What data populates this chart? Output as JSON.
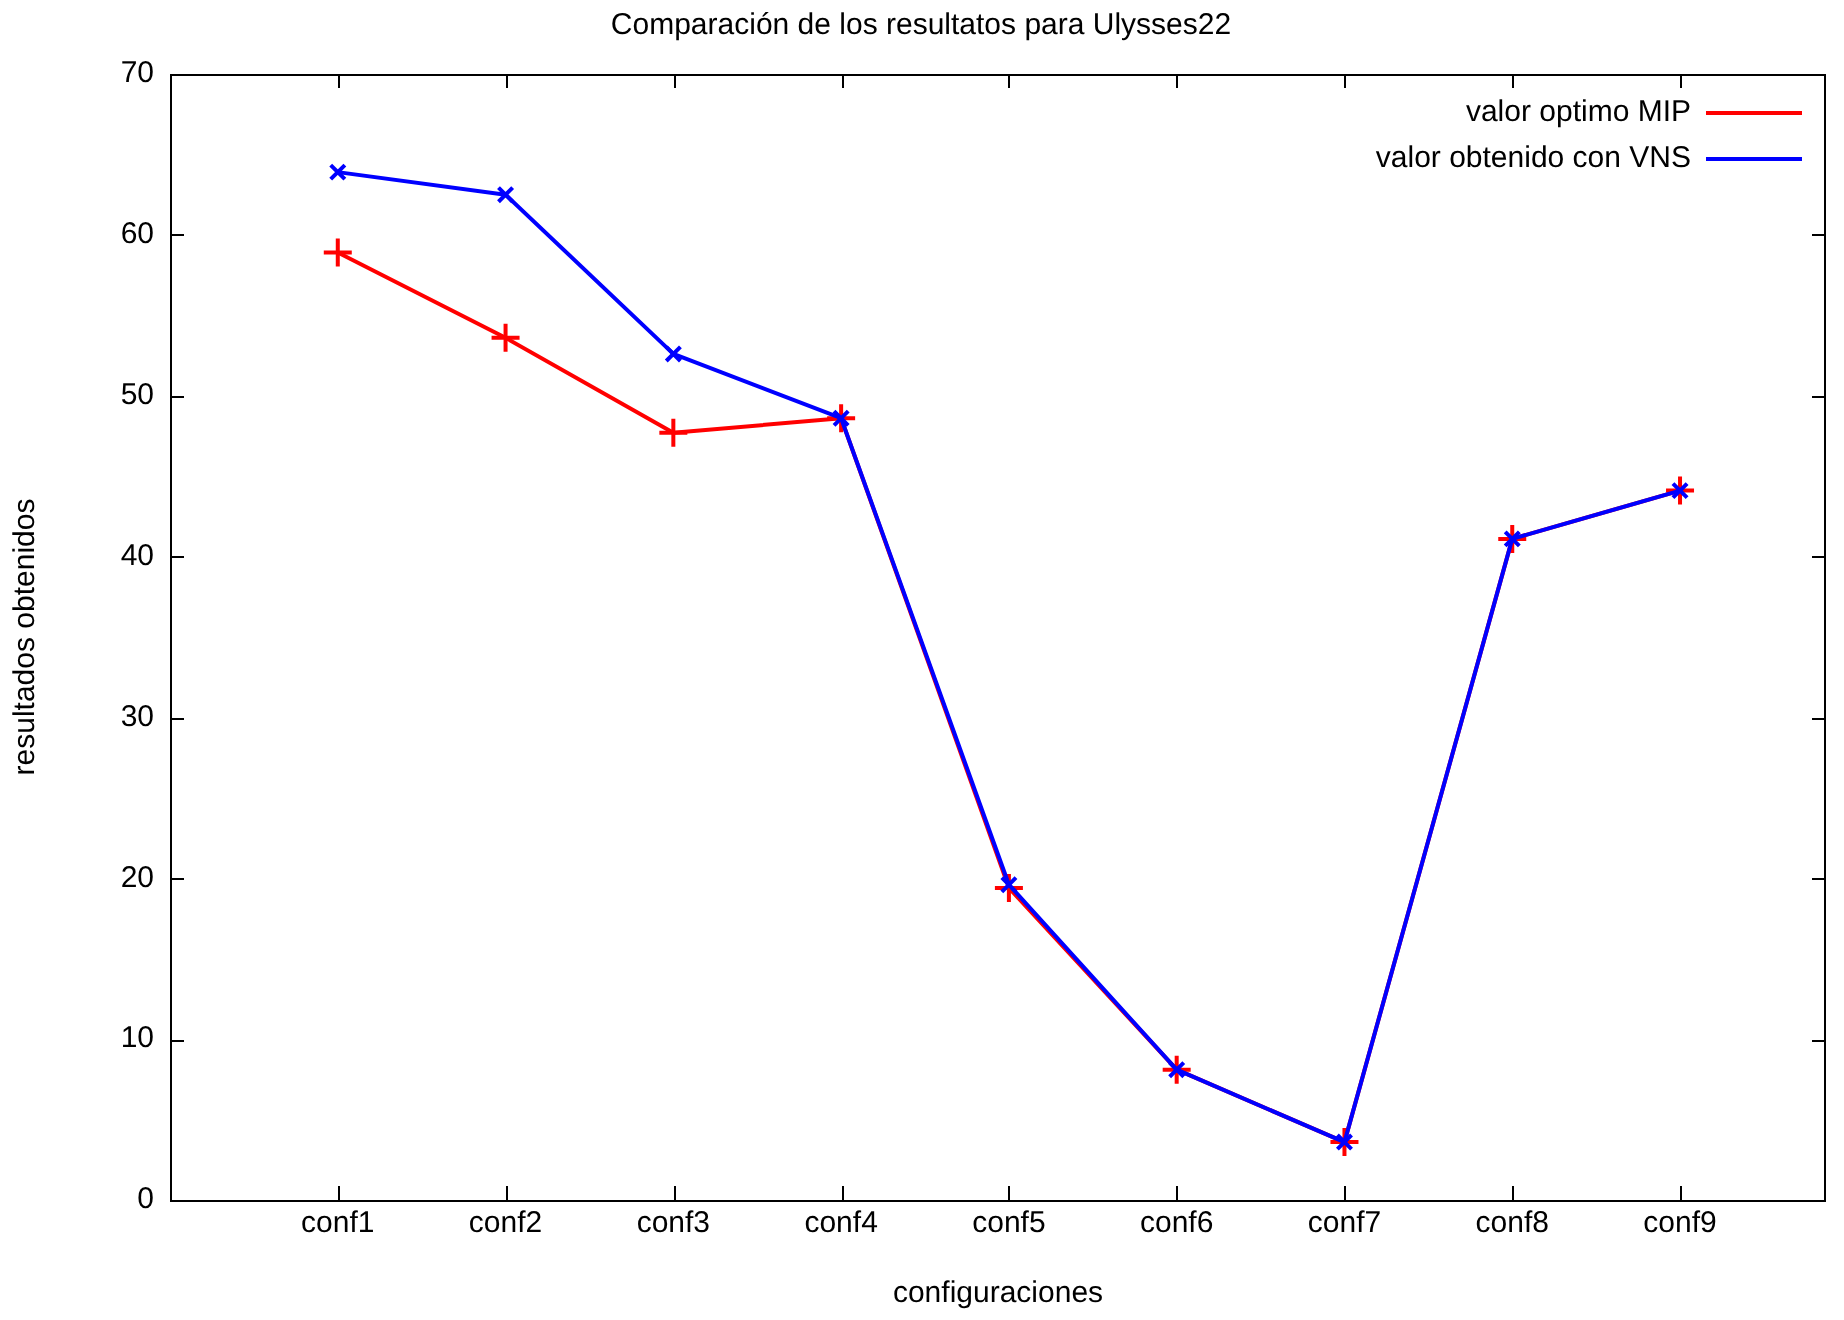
{
  "chart_data": {
    "type": "line",
    "title": "Comparación de los resultatos para Ulysses22",
    "xlabel": "configuraciones",
    "ylabel": "resultados obtenidos",
    "categories": [
      "conf1",
      "conf2",
      "conf3",
      "conf4",
      "conf5",
      "conf6",
      "conf7",
      "conf8",
      "conf9"
    ],
    "series": [
      {
        "name": "valor optimo MIP",
        "color": "#ff0000",
        "marker": "cross",
        "values": [
          58.9,
          53.6,
          47.7,
          48.6,
          19.4,
          8.1,
          3.6,
          41.1,
          44.1
        ]
      },
      {
        "name": "valor obtenido con VNS",
        "color": "#0000ff",
        "marker": "cross",
        "values": [
          63.9,
          62.5,
          52.6,
          48.6,
          19.6,
          8.1,
          3.6,
          41.1,
          44.1
        ]
      }
    ],
    "ylim": [
      0,
      70
    ],
    "yticks": [
      0,
      10,
      20,
      30,
      40,
      50,
      60,
      70
    ],
    "grid": false,
    "legend": "top right",
    "line_style": "solid"
  }
}
